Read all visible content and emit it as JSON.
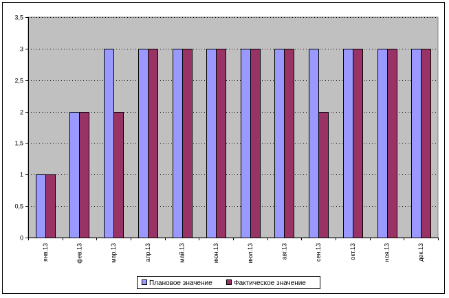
{
  "chart_data": {
    "type": "bar",
    "categories": [
      "янв.13",
      "фев.13",
      "мар.13",
      "апр.13",
      "май.13",
      "июн.13",
      "июл.13",
      "авг.13",
      "сен.13",
      "окт.13",
      "ноя.13",
      "дек.13"
    ],
    "series": [
      {
        "name": "Плановое значение",
        "values": [
          1,
          2,
          3,
          3,
          3,
          3,
          3,
          3,
          3,
          3,
          3,
          3
        ],
        "color": "#9999ff"
      },
      {
        "name": "Фактическое значение",
        "values": [
          1,
          2,
          2,
          3,
          3,
          3,
          3,
          3,
          2,
          3,
          3,
          3
        ],
        "color": "#993366"
      }
    ],
    "yticks": [
      "0",
      "0,5",
      "1",
      "1,5",
      "2",
      "2,5",
      "3",
      "3,5"
    ],
    "ylim": [
      0,
      3.5
    ],
    "grid": "horizontal dotted",
    "legend": "bottom",
    "plot_background": "#c0c0c0"
  }
}
